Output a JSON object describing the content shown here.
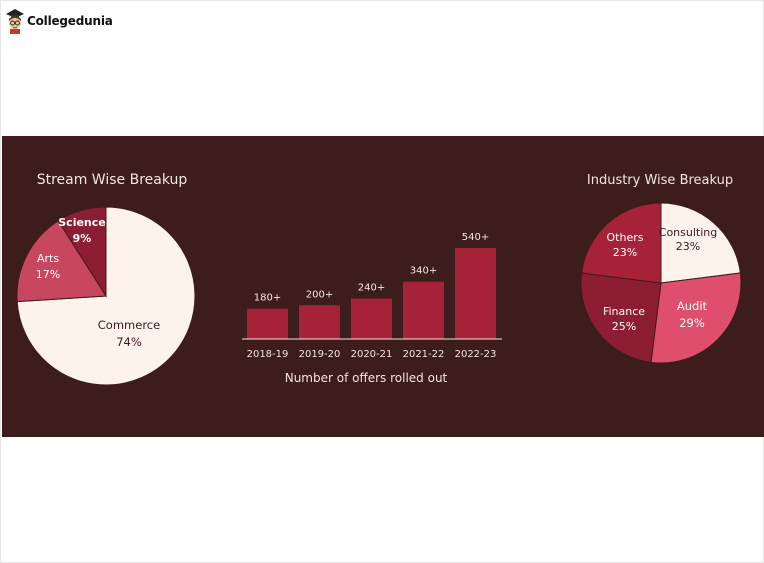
{
  "brand": {
    "name": "Collegedunia"
  },
  "colors": {
    "banner_bg": "#3d1c1c",
    "cream": "#fdf3ea",
    "crimson": "#a52239",
    "rose": "#c9465f",
    "dark_crimson": "#8c1d32",
    "pink": "#df4f6d",
    "text_light": "#f2e6e0"
  },
  "chart_data": [
    {
      "type": "pie",
      "title": "Stream Wise Breakup",
      "slices": [
        {
          "label": "Commerce",
          "value": 74,
          "value_label": "74%",
          "color": "#fdf3ea",
          "text_color": "#3a1a1a"
        },
        {
          "label": "Arts",
          "value": 17,
          "value_label": "17%",
          "color": "#c9465f",
          "text_color": "#ffffff"
        },
        {
          "label": "Science",
          "value": 9,
          "value_label": "9%",
          "color": "#8c1d32",
          "text_color": "#ffffff"
        }
      ]
    },
    {
      "type": "bar",
      "xlabel": "Number of offers rolled out",
      "categories": [
        "2018-19",
        "2019-20",
        "2020-21",
        "2021-22",
        "2022-23"
      ],
      "values": [
        180,
        200,
        240,
        340,
        540
      ],
      "value_labels": [
        "180+",
        "200+",
        "240+",
        "340+",
        "540+"
      ],
      "ylim": [
        0,
        540
      ],
      "color": "#a52239"
    },
    {
      "type": "pie",
      "title": "Industry Wise Breakup",
      "slices": [
        {
          "label": "Consulting",
          "value": 23,
          "value_label": "23%",
          "color": "#fdf3ea",
          "text_color": "#3a1a1a"
        },
        {
          "label": "Audit",
          "value": 29,
          "value_label": "29%",
          "color": "#df4f6d",
          "text_color": "#ffffff"
        },
        {
          "label": "Finance",
          "value": 25,
          "value_label": "25%",
          "color": "#8c1d32",
          "text_color": "#ffffff"
        },
        {
          "label": "Others",
          "value": 23,
          "value_label": "23%",
          "color": "#a52239",
          "text_color": "#ffffff"
        }
      ]
    }
  ]
}
